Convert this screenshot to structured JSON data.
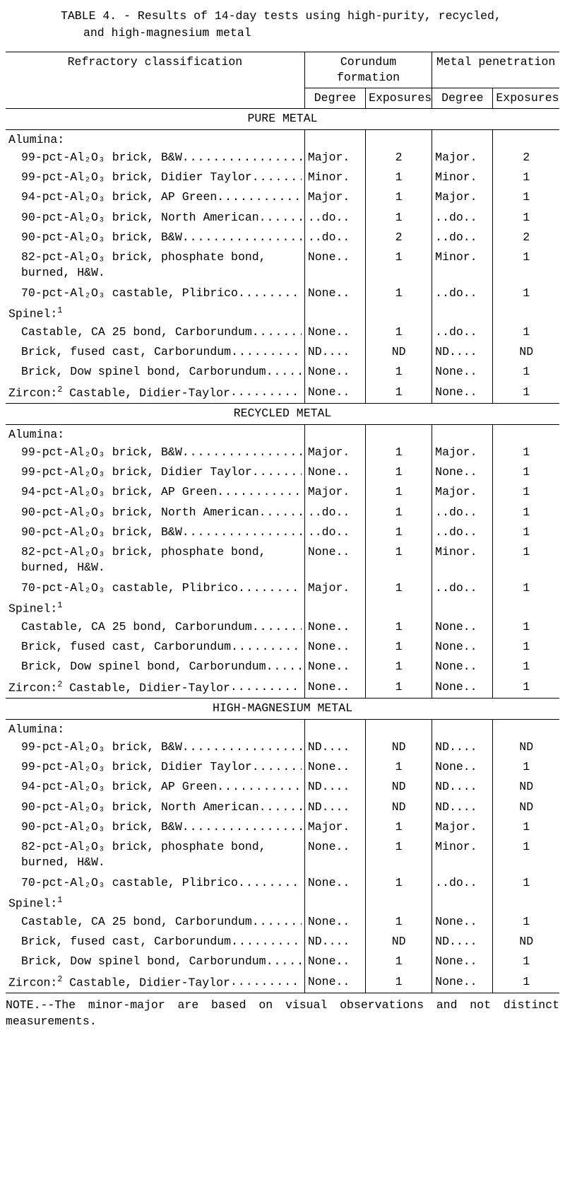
{
  "title_l1": "TABLE 4. - Results of 14-day tests using high-purity, recycled,",
  "title_l2": "and high-magnesium metal",
  "headers": {
    "refractory": "Refractory classification",
    "corundum": "Corundum formation",
    "penetration": "Metal penetration",
    "degree": "Degree",
    "exposures": "Exposures"
  },
  "groups": {
    "alumina": "Alumina:",
    "spinel": "Spinel:",
    "zircon": "Zircon:",
    "zircon_item": "  Castable, Didier-Taylor",
    "sup1": "1",
    "sup2": "2"
  },
  "sections": [
    {
      "title": "PURE METAL",
      "alumina": [
        {
          "label": "99-pct-Al₂O₃ brick, B&W",
          "cd": "Major.",
          "ce": "2",
          "pd": "Major.",
          "pe": "2"
        },
        {
          "label": "99-pct-Al₂O₃ brick, Didier Taylor",
          "cd": "Minor.",
          "ce": "1",
          "pd": "Minor.",
          "pe": "1"
        },
        {
          "label": "94-pct-Al₂O₃ brick, AP Green",
          "cd": "Major.",
          "ce": "1",
          "pd": "Major.",
          "pe": "1"
        },
        {
          "label": "90-pct-Al₂O₃ brick, North American",
          "cd": "..do..",
          "ce": "1",
          "pd": "..do..",
          "pe": "1"
        },
        {
          "label": "90-pct-Al₂O₃ brick, B&W",
          "cd": "..do..",
          "ce": "2",
          "pd": "..do..",
          "pe": "2"
        },
        {
          "label": "82-pct-Al₂O₃ brick, phosphate bond, burned, H&W.",
          "cd": "None..",
          "ce": "1",
          "pd": "Minor.",
          "pe": "1",
          "noleader": true
        },
        {
          "label": "70-pct-Al₂O₃ castable, Plibrico",
          "cd": "None..",
          "ce": "1",
          "pd": "..do..",
          "pe": "1"
        }
      ],
      "spinel": [
        {
          "label": "Castable, CA 25 bond, Carborundum",
          "cd": "None..",
          "ce": "1",
          "pd": "..do..",
          "pe": "1"
        },
        {
          "label": "Brick, fused cast, Carborundum",
          "cd": "ND....",
          "ce": "ND",
          "pd": "ND....",
          "pe": "ND"
        },
        {
          "label": "Brick, Dow spinel bond, Carborundum",
          "cd": "None..",
          "ce": "1",
          "pd": "None..",
          "pe": "1"
        }
      ],
      "zircon": {
        "cd": "None..",
        "ce": "1",
        "pd": "None..",
        "pe": "1"
      }
    },
    {
      "title": "RECYCLED METAL",
      "alumina": [
        {
          "label": "99-pct-Al₂O₃ brick, B&W",
          "cd": "Major.",
          "ce": "1",
          "pd": "Major.",
          "pe": "1"
        },
        {
          "label": "99-pct-Al₂O₃ brick, Didier Taylor",
          "cd": "None..",
          "ce": "1",
          "pd": "None..",
          "pe": "1"
        },
        {
          "label": "94-pct-Al₂O₃ brick, AP Green",
          "cd": "Major.",
          "ce": "1",
          "pd": "Major.",
          "pe": "1"
        },
        {
          "label": "90-pct-Al₂O₃ brick, North American",
          "cd": "..do..",
          "ce": "1",
          "pd": "..do..",
          "pe": "1"
        },
        {
          "label": "90-pct-Al₂O₃ brick, B&W",
          "cd": "..do..",
          "ce": "1",
          "pd": "..do..",
          "pe": "1"
        },
        {
          "label": "82-pct-Al₂O₃ brick, phosphate bond, burned, H&W.",
          "cd": "None..",
          "ce": "1",
          "pd": "Minor.",
          "pe": "1",
          "noleader": true
        },
        {
          "label": "70-pct-Al₂O₃ castable, Plibrico",
          "cd": "Major.",
          "ce": "1",
          "pd": "..do..",
          "pe": "1"
        }
      ],
      "spinel": [
        {
          "label": "Castable, CA 25 bond, Carborundum",
          "cd": "None..",
          "ce": "1",
          "pd": "None..",
          "pe": "1"
        },
        {
          "label": "Brick, fused cast, Carborundum",
          "cd": "None..",
          "ce": "1",
          "pd": "None..",
          "pe": "1"
        },
        {
          "label": "Brick, Dow spinel bond, Carborundum",
          "cd": "None..",
          "ce": "1",
          "pd": "None..",
          "pe": "1"
        }
      ],
      "zircon": {
        "cd": "None..",
        "ce": "1",
        "pd": "None..",
        "pe": "1"
      }
    },
    {
      "title": "HIGH-MAGNESIUM METAL",
      "alumina": [
        {
          "label": "99-pct-Al₂O₃ brick, B&W",
          "cd": "ND....",
          "ce": "ND",
          "pd": "ND....",
          "pe": "ND"
        },
        {
          "label": "99-pct-Al₂O₃ brick, Didier Taylor",
          "cd": "None..",
          "ce": "1",
          "pd": "None..",
          "pe": "1"
        },
        {
          "label": "94-pct-Al₂O₃ brick, AP Green",
          "cd": "ND....",
          "ce": "ND",
          "pd": "ND....",
          "pe": "ND"
        },
        {
          "label": "90-pct-Al₂O₃ brick, North American",
          "cd": "ND....",
          "ce": "ND",
          "pd": "ND....",
          "pe": "ND"
        },
        {
          "label": "90-pct-Al₂O₃ brick, B&W",
          "cd": "Major.",
          "ce": "1",
          "pd": "Major.",
          "pe": "1"
        },
        {
          "label": "82-pct-Al₂O₃ brick, phosphate bond, burned, H&W.",
          "cd": "None..",
          "ce": "1",
          "pd": "Minor.",
          "pe": "1",
          "noleader": true
        },
        {
          "label": "70-pct-Al₂O₃ castable, Plibrico",
          "cd": "None..",
          "ce": "1",
          "pd": "..do..",
          "pe": "1"
        }
      ],
      "spinel": [
        {
          "label": "Castable, CA 25 bond, Carborundum",
          "cd": "None..",
          "ce": "1",
          "pd": "None..",
          "pe": "1"
        },
        {
          "label": "Brick, fused cast, Carborundum",
          "cd": "ND....",
          "ce": "ND",
          "pd": "ND....",
          "pe": "ND"
        },
        {
          "label": "Brick, Dow spinel bond, Carborundum",
          "cd": "None..",
          "ce": "1",
          "pd": "None..",
          "pe": "1"
        }
      ],
      "zircon": {
        "cd": "None..",
        "ce": "1",
        "pd": "None..",
        "pe": "1"
      }
    }
  ],
  "note_l1": " NOTE.--The minor-major are  based  on  visual  observations  and  not  distinct",
  "note_l2": "measurements."
}
